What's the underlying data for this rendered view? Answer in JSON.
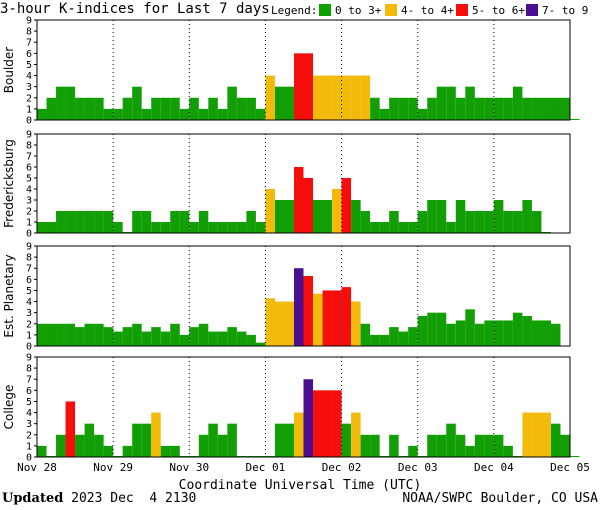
{
  "header": {
    "title": "3-hour K-indices for Last 7 days",
    "legend_label": "Legend:"
  },
  "legend": [
    {
      "label": "0 to 3+",
      "color": "#129e05"
    },
    {
      "label": "4- to 4+",
      "color": "#f2bb0c"
    },
    {
      "label": "5- to 6+",
      "color": "#f50e0b"
    },
    {
      "label": "7- to 9",
      "color": "#4b0f8f"
    }
  ],
  "footer": {
    "updated_label": "Updated",
    "updated_value": "2023 Dec  4 2130",
    "credit": "NOAA/SWPC Boulder, CO USA"
  },
  "chart_data": {
    "type": "bar",
    "xlabel": "Coordinate Universal Time (UTC)",
    "x_ticks": [
      "Nov 28",
      "Nov 29",
      "Nov 30",
      "Dec 01",
      "Dec 02",
      "Dec 03",
      "Dec 04",
      "Dec 05"
    ],
    "ylim": [
      0,
      9
    ],
    "y_ticks": [
      0,
      1,
      2,
      3,
      4,
      5,
      6,
      7,
      8,
      9
    ],
    "grid": true,
    "color_thresholds": [
      {
        "below": 4,
        "color": "#129e05"
      },
      {
        "below": 5,
        "color": "#f2bb0c"
      },
      {
        "below": 7,
        "color": "#f50e0b"
      },
      {
        "below": 10,
        "color": "#4b0f8f"
      }
    ],
    "panels": [
      {
        "name": "Boulder",
        "values": [
          1,
          2,
          3,
          3,
          2,
          2,
          2,
          1,
          1,
          2,
          3,
          1,
          2,
          2,
          2,
          1,
          2,
          1,
          2,
          1,
          3,
          2,
          2,
          1,
          4,
          3,
          3,
          6,
          6,
          4,
          4,
          4,
          4,
          4,
          4,
          2,
          1,
          2,
          2,
          2,
          1,
          2,
          3,
          3,
          2,
          3,
          2,
          2,
          2,
          2,
          3,
          2,
          2,
          2,
          2,
          2,
          0
        ]
      },
      {
        "name": "Fredericksburg",
        "values": [
          1,
          1,
          2,
          2,
          2,
          2,
          2,
          2,
          1,
          0,
          2,
          2,
          1,
          1,
          2,
          2,
          1,
          2,
          1,
          1,
          1,
          1,
          2,
          1,
          4,
          3,
          3,
          6,
          5,
          3,
          3,
          4,
          5,
          3,
          2,
          1,
          1,
          2,
          1,
          1,
          2,
          3,
          3,
          1,
          3,
          2,
          2,
          2,
          3,
          2,
          2,
          3,
          2,
          0
        ]
      },
      {
        "name": "Est. Planetary",
        "values": [
          2,
          2,
          2,
          2,
          1.7,
          2,
          2,
          1.7,
          1.3,
          1.7,
          2,
          1.3,
          1.7,
          1.3,
          2,
          1,
          1.7,
          2,
          1.3,
          1.3,
          1.7,
          1.3,
          1,
          0.3,
          4.3,
          4,
          4,
          7,
          6.3,
          4.7,
          5,
          5,
          5.3,
          4,
          2,
          1,
          1,
          1.7,
          1.3,
          1.7,
          2.7,
          3,
          3,
          2,
          2.3,
          3.3,
          2,
          2.3,
          2.3,
          2.3,
          3,
          2.7,
          2.3,
          2.3,
          2
        ]
      },
      {
        "name": "College",
        "values": [
          1,
          0,
          2,
          5,
          2,
          3,
          2,
          1,
          0,
          1,
          3,
          3,
          4,
          1,
          1,
          0,
          0,
          2,
          3,
          2,
          3,
          0,
          0,
          0,
          0,
          3,
          3,
          4,
          7,
          6,
          6,
          6,
          3,
          4,
          2,
          2,
          0,
          2,
          0,
          1,
          0,
          2,
          2,
          3,
          2,
          1,
          2,
          2,
          2,
          1,
          0,
          4,
          4,
          4,
          3,
          2,
          0
        ]
      }
    ]
  }
}
